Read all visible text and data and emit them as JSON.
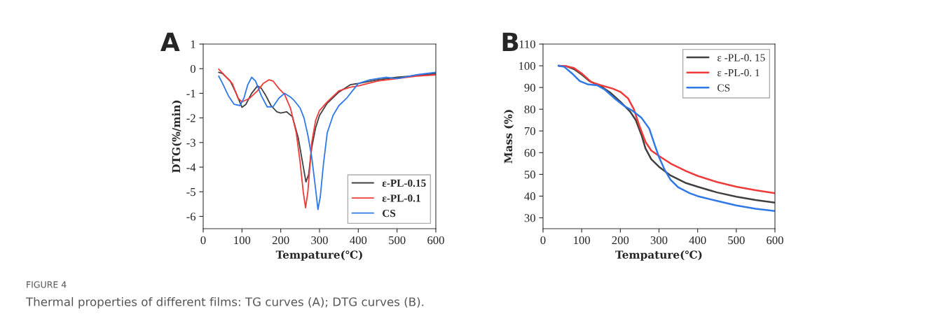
{
  "chart_data": [
    {
      "type": "line",
      "title": "A",
      "xlabel": "Tempature(℃)",
      "ylabel": "DTG(%/min)",
      "xlim": [
        0,
        600
      ],
      "xticks": [
        0,
        100,
        200,
        300,
        400,
        500,
        600
      ],
      "ylim": [
        -6.5,
        1
      ],
      "yticks": [
        -6,
        -5,
        -4,
        -3,
        -2,
        -1,
        0,
        1
      ],
      "grid": false,
      "legend": "bottom right",
      "annotations": [
        "FIGURE 4",
        "Thermal properties of different films: TG curves (A); DTG curves (B)."
      ],
      "series": [
        {
          "name": "ε-PL-0.15",
          "color": "#404040",
          "x": [
            40,
            50,
            70,
            85,
            100,
            110,
            125,
            140,
            150,
            160,
            175,
            190,
            200,
            215,
            230,
            245,
            255,
            265,
            272,
            280,
            290,
            300,
            320,
            350,
            380,
            400,
            450,
            500,
            550,
            600
          ],
          "values": [
            -0.15,
            -0.2,
            -0.5,
            -1.0,
            -1.57,
            -1.45,
            -1.0,
            -0.7,
            -0.8,
            -1.05,
            -1.5,
            -1.75,
            -1.8,
            -1.75,
            -1.95,
            -2.8,
            -3.7,
            -4.6,
            -4.3,
            -3.2,
            -2.4,
            -1.9,
            -1.4,
            -0.95,
            -0.65,
            -0.6,
            -0.45,
            -0.35,
            -0.28,
            -0.2
          ]
        },
        {
          "name": "ε-PL-0.1",
          "color": "#f03a3a",
          "x": [
            40,
            60,
            75,
            90,
            100,
            120,
            140,
            155,
            170,
            180,
            195,
            210,
            225,
            240,
            250,
            258,
            264,
            270,
            280,
            290,
            300,
            320,
            350,
            380,
            400,
            450,
            500,
            550,
            600
          ],
          "values": [
            -0.02,
            -0.35,
            -0.6,
            -1.2,
            -1.35,
            -1.2,
            -0.9,
            -0.6,
            -0.45,
            -0.5,
            -0.8,
            -1.05,
            -1.6,
            -2.6,
            -3.8,
            -5.0,
            -5.65,
            -5.0,
            -3.0,
            -2.1,
            -1.7,
            -1.35,
            -0.9,
            -0.75,
            -0.7,
            -0.5,
            -0.4,
            -0.3,
            -0.25
          ]
        },
        {
          "name": "CS",
          "color": "#2f78e8",
          "x": [
            40,
            50,
            65,
            80,
            95,
            105,
            115,
            125,
            135,
            150,
            165,
            180,
            195,
            210,
            225,
            235,
            250,
            260,
            270,
            280,
            290,
            296,
            302,
            310,
            320,
            335,
            350,
            370,
            385,
            400,
            430,
            470,
            500,
            550,
            600
          ],
          "values": [
            -0.3,
            -0.6,
            -1.1,
            -1.45,
            -1.5,
            -1.2,
            -0.65,
            -0.35,
            -0.5,
            -1.1,
            -1.55,
            -1.55,
            -1.2,
            -1.0,
            -1.15,
            -1.3,
            -1.6,
            -2.0,
            -2.7,
            -3.6,
            -4.9,
            -5.72,
            -5.2,
            -3.9,
            -2.6,
            -1.9,
            -1.5,
            -1.2,
            -0.9,
            -0.6,
            -0.45,
            -0.35,
            -0.4,
            -0.25,
            -0.15
          ]
        }
      ]
    },
    {
      "type": "line",
      "title": "B",
      "xlabel": "Tempature(℃)",
      "ylabel": "Mass (%)",
      "xlim": [
        0,
        600
      ],
      "xticks": [
        0,
        100,
        200,
        300,
        400,
        500,
        600
      ],
      "ylim": [
        25,
        110
      ],
      "yticks": [
        30,
        40,
        50,
        60,
        70,
        80,
        90,
        100,
        110
      ],
      "grid": false,
      "legend": "top right",
      "series": [
        {
          "name": "ε -PL-0. 15",
          "color": "#404040",
          "x": [
            40,
            60,
            80,
            100,
            120,
            150,
            175,
            200,
            225,
            240,
            255,
            265,
            280,
            300,
            330,
            370,
            400,
            450,
            500,
            550,
            600
          ],
          "values": [
            100,
            99.8,
            98.5,
            96,
            93,
            90.5,
            87.5,
            83.5,
            79,
            75,
            68,
            62,
            57,
            53.5,
            49.5,
            46,
            44.3,
            41.7,
            39.7,
            38.2,
            37
          ]
        },
        {
          "name": "ε -PL-0. 1",
          "color": "#f03a3a",
          "x": [
            40,
            60,
            80,
            100,
            125,
            150,
            180,
            200,
            220,
            235,
            250,
            265,
            280,
            300,
            330,
            370,
            400,
            450,
            500,
            550,
            600
          ],
          "values": [
            100,
            99.8,
            99,
            96.5,
            92.5,
            91,
            89.5,
            88,
            85,
            80,
            72,
            65,
            61,
            58.5,
            55,
            51.5,
            49.3,
            46.5,
            44.3,
            42.7,
            41.3
          ]
        },
        {
          "name": "CS",
          "color": "#2f78e8",
          "x": [
            40,
            55,
            75,
            95,
            115,
            140,
            160,
            185,
            210,
            230,
            255,
            275,
            290,
            300,
            315,
            330,
            350,
            380,
            400,
            450,
            500,
            550,
            600
          ],
          "values": [
            100,
            99.5,
            96.5,
            93,
            91.5,
            91,
            89,
            85,
            81.5,
            79.5,
            76,
            71,
            63,
            58,
            52,
            47.5,
            44,
            41.3,
            40,
            37.8,
            35.7,
            34.2,
            33.1
          ]
        }
      ]
    }
  ]
}
